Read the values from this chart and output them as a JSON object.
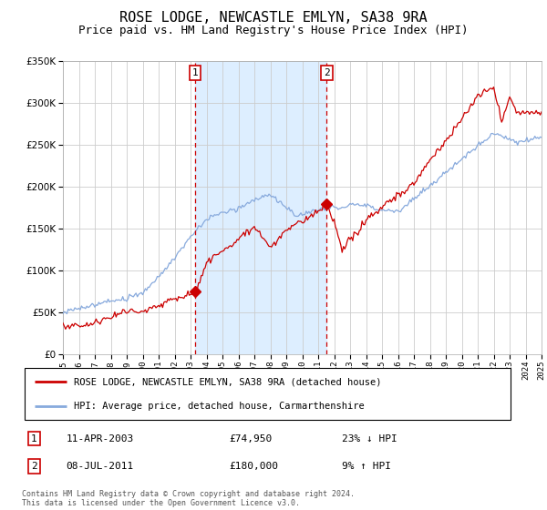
{
  "title": "ROSE LODGE, NEWCASTLE EMLYN, SA38 9RA",
  "subtitle": "Price paid vs. HM Land Registry's House Price Index (HPI)",
  "title_fontsize": 11,
  "subtitle_fontsize": 9,
  "background_color": "#ffffff",
  "grid_color": "#cccccc",
  "plot_bg": "#ffffff",
  "shade_color": "#ddeeff",
  "hpi_color": "#88aadd",
  "sold_color": "#cc0000",
  "purchase1": {
    "label": "1",
    "year": 2003.28,
    "price": 74950
  },
  "purchase2": {
    "label": "2",
    "year": 2011.54,
    "price": 180000
  },
  "legend_house": "ROSE LODGE, NEWCASTLE EMLYN, SA38 9RA (detached house)",
  "legend_hpi": "HPI: Average price, detached house, Carmarthenshire",
  "transaction1_date": "11-APR-2003",
  "transaction1_price": "£74,950",
  "transaction1_hpi": "23% ↓ HPI",
  "transaction2_date": "08-JUL-2011",
  "transaction2_price": "£180,000",
  "transaction2_hpi": "9% ↑ HPI",
  "footer": "Contains HM Land Registry data © Crown copyright and database right 2024.\nThis data is licensed under the Open Government Licence v3.0.",
  "ylim": [
    0,
    350000
  ],
  "yticks": [
    0,
    50000,
    100000,
    150000,
    200000,
    250000,
    300000,
    350000
  ],
  "xlim_start": 1995,
  "xlim_end": 2025
}
